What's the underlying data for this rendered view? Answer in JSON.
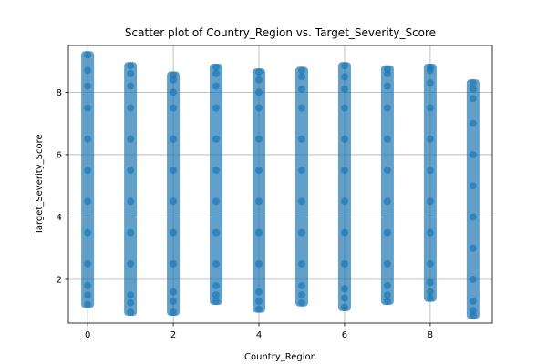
{
  "chart_data": {
    "type": "scatter",
    "title": "Scatter plot of Country_Region vs. Target_Severity_Score",
    "xlabel": "Country_Region",
    "ylabel": "Target_Severity_Score",
    "xlim": [
      -0.45,
      9.45
    ],
    "ylim": [
      0.6,
      9.5
    ],
    "xticks": [
      0,
      2,
      4,
      6,
      8
    ],
    "yticks": [
      2,
      4,
      6,
      8
    ],
    "grid": true,
    "marker_color": "#1f77b4",
    "marker_alpha": 0.7,
    "series": [
      {
        "x": [
          0,
          0,
          0,
          0,
          0,
          0,
          0,
          0,
          0,
          0,
          0,
          0,
          1,
          1,
          1,
          1,
          1,
          1,
          1,
          1,
          1,
          1,
          1,
          1,
          2,
          2,
          2,
          2,
          2,
          2,
          2,
          2,
          2,
          2,
          2,
          2,
          3,
          3,
          3,
          3,
          3,
          3,
          3,
          3,
          3,
          3,
          3,
          3,
          4,
          4,
          4,
          4,
          4,
          4,
          4,
          4,
          4,
          4,
          4,
          4,
          5,
          5,
          5,
          5,
          5,
          5,
          5,
          5,
          5,
          5,
          5,
          5,
          6,
          6,
          6,
          6,
          6,
          6,
          6,
          6,
          6,
          6,
          6,
          6,
          7,
          7,
          7,
          7,
          7,
          7,
          7,
          7,
          7,
          7,
          7,
          7,
          8,
          8,
          8,
          8,
          8,
          8,
          8,
          8,
          8,
          8,
          8,
          8,
          9,
          9,
          9,
          9,
          9,
          9,
          9,
          9,
          9,
          9,
          9,
          9
        ],
        "y": [
          1.2,
          1.5,
          1.8,
          2.5,
          3.5,
          4.5,
          5.5,
          6.5,
          7.5,
          8.2,
          8.7,
          9.2,
          0.95,
          1.25,
          1.5,
          2.5,
          3.5,
          4.5,
          5.5,
          6.5,
          7.5,
          8.2,
          8.6,
          8.85,
          0.95,
          1.3,
          1.6,
          2.5,
          3.5,
          4.5,
          5.5,
          6.5,
          7.5,
          8.0,
          8.4,
          8.55,
          1.3,
          1.5,
          1.8,
          2.5,
          3.5,
          4.5,
          5.5,
          6.5,
          7.5,
          8.2,
          8.6,
          8.8,
          1.05,
          1.3,
          1.6,
          2.5,
          3.5,
          4.5,
          5.5,
          6.5,
          7.5,
          8.0,
          8.4,
          8.65,
          1.25,
          1.5,
          1.8,
          2.5,
          3.5,
          4.5,
          5.5,
          6.5,
          7.5,
          8.1,
          8.5,
          8.7,
          1.1,
          1.4,
          1.7,
          2.5,
          3.5,
          4.5,
          5.5,
          6.5,
          7.5,
          8.1,
          8.5,
          8.85,
          1.3,
          1.5,
          1.8,
          2.5,
          3.5,
          4.5,
          5.5,
          6.5,
          7.5,
          8.2,
          8.6,
          8.75,
          1.4,
          1.6,
          1.9,
          2.5,
          3.5,
          4.5,
          5.5,
          6.5,
          7.5,
          8.3,
          8.7,
          8.8,
          0.85,
          1.0,
          1.3,
          2.0,
          3.0,
          4.0,
          5.0,
          6.0,
          7.0,
          7.8,
          8.1,
          8.3
        ]
      }
    ]
  }
}
